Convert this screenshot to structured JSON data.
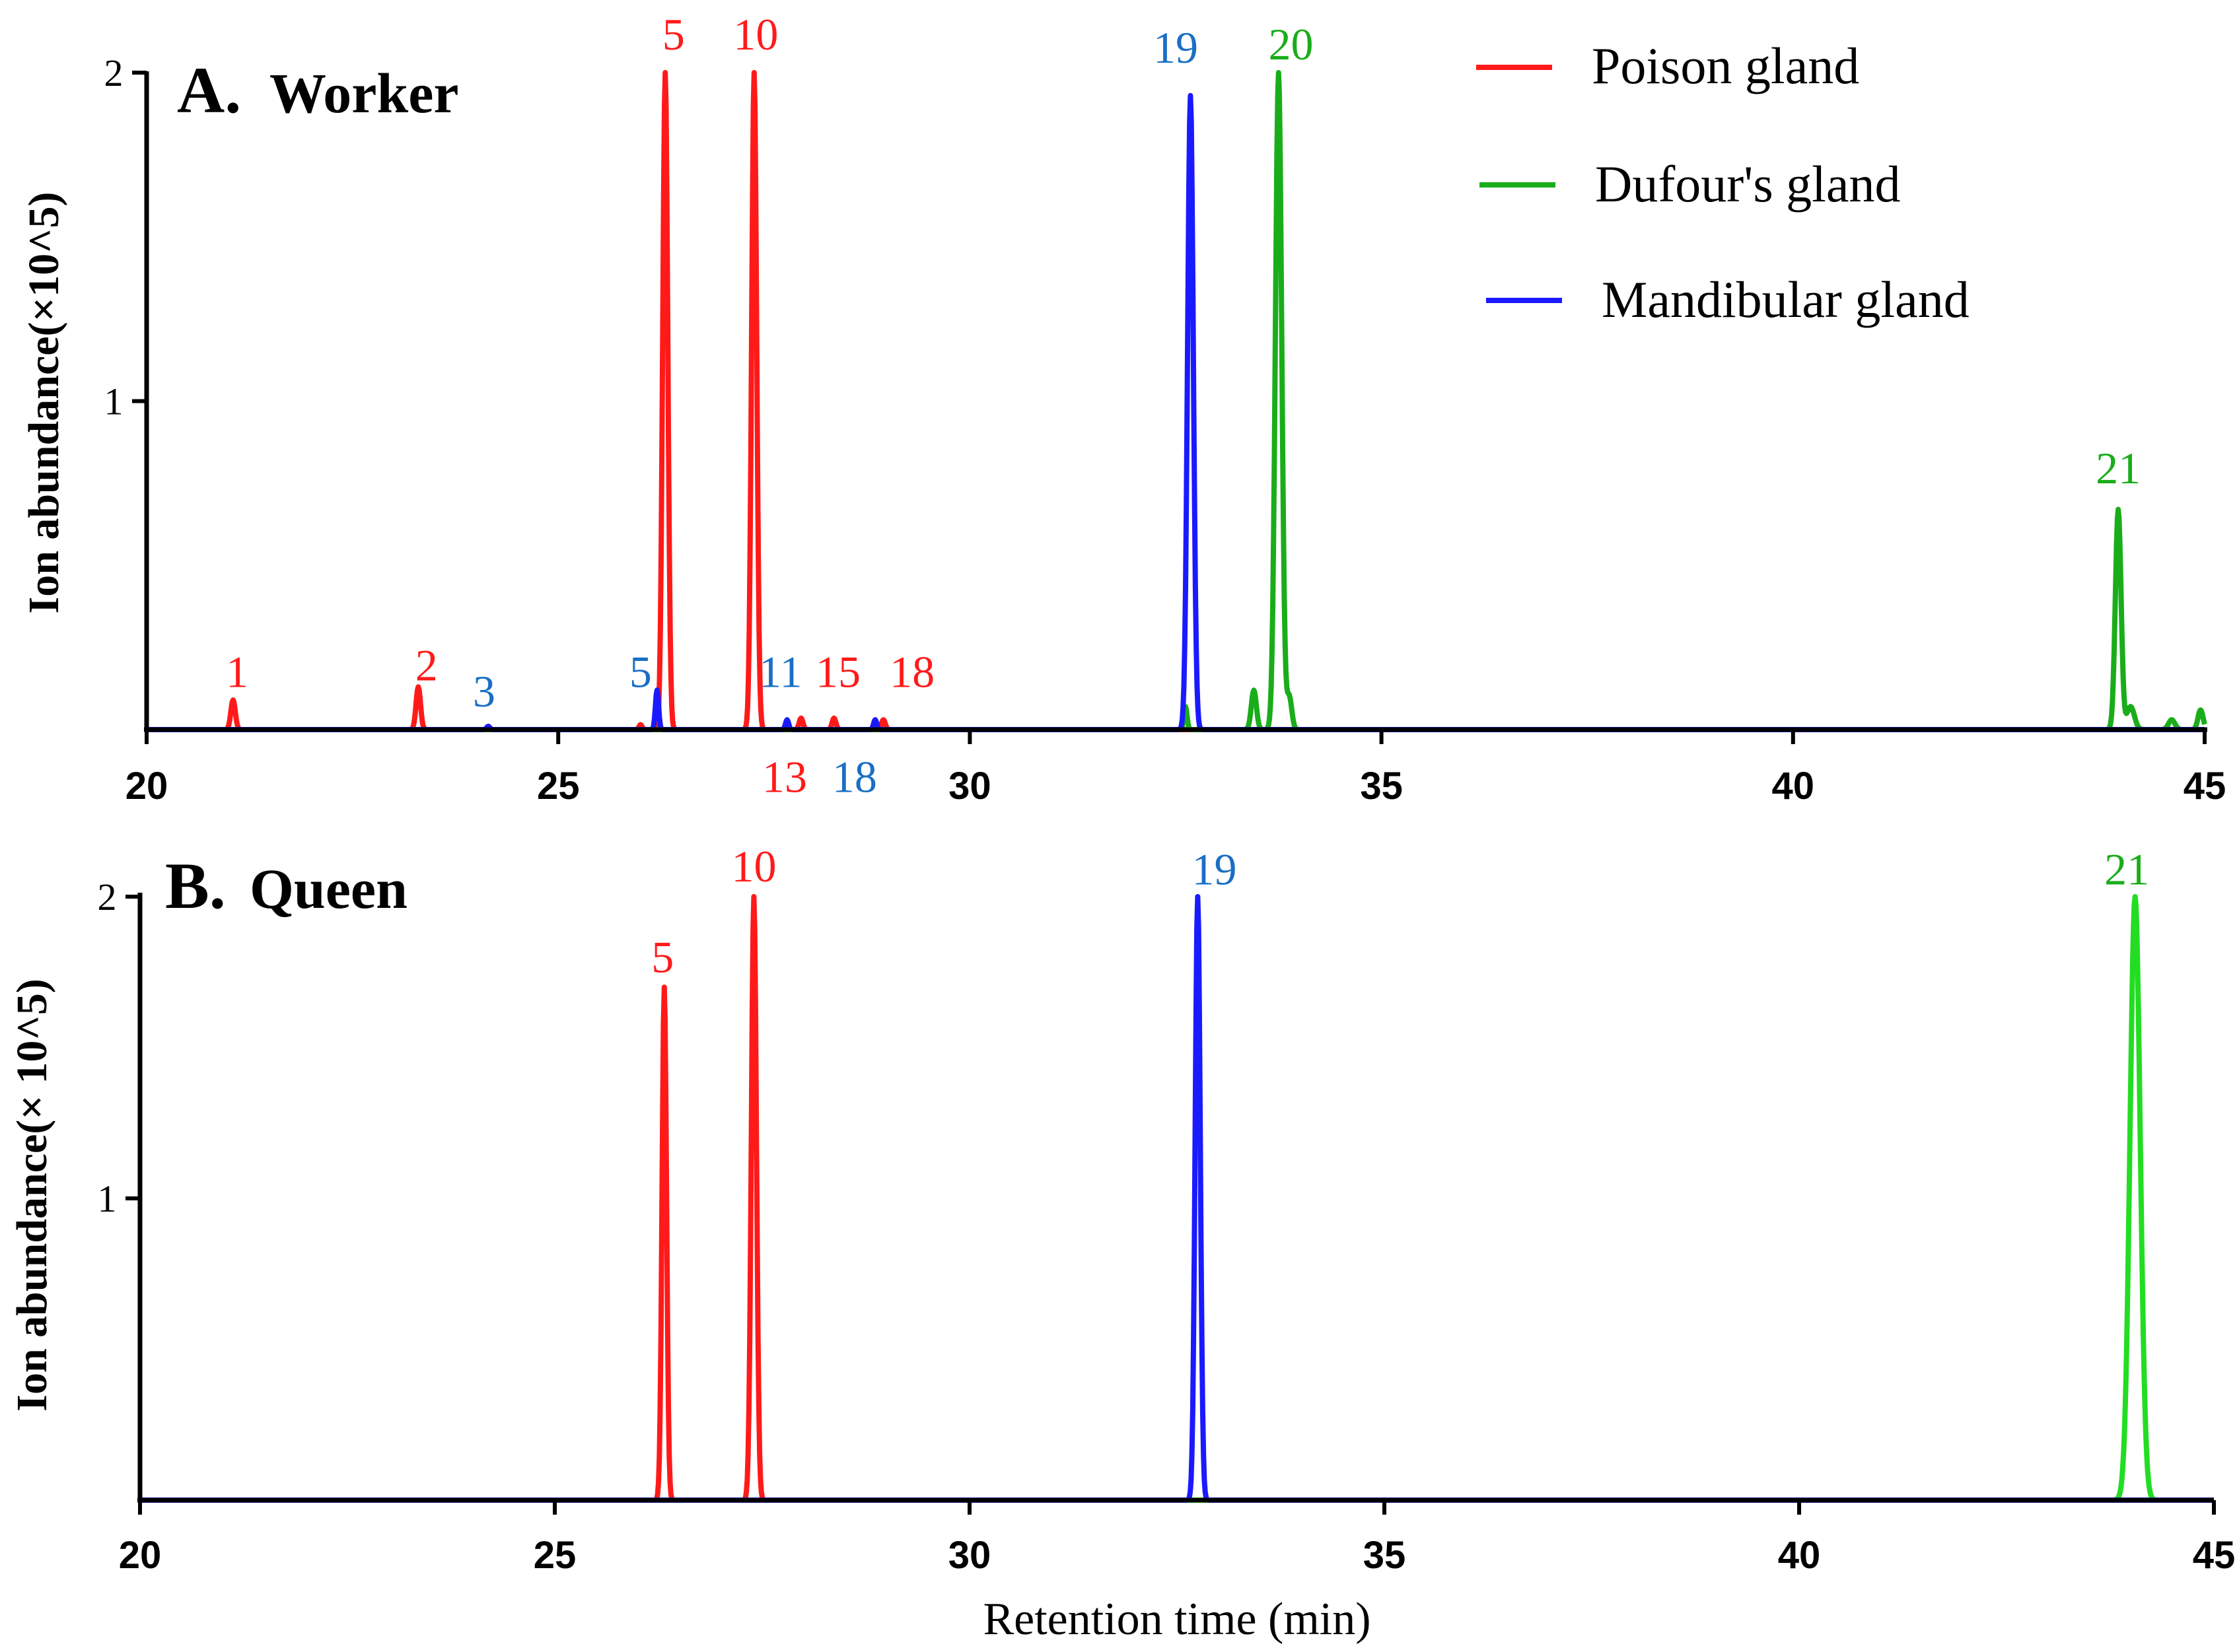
{
  "chart_data": [
    {
      "type": "line",
      "panel": "A",
      "title_letter": "A.",
      "title": "Worker",
      "xlabel": "",
      "ylabel": "Ion abundance(×10^5)",
      "xlim": [
        20,
        45
      ],
      "ylim": [
        0,
        2
      ],
      "xticks": [
        "20",
        "25",
        "30",
        "35",
        "40",
        "45"
      ],
      "yticks": [
        "1",
        "2"
      ],
      "legend": {
        "placement": "top-right",
        "entries": [
          {
            "label": "Poison gland",
            "color": "#ff1a1a"
          },
          {
            "label": "Dufour's gland",
            "color": "#1aad1a"
          },
          {
            "label": "Mandibular gland",
            "color": "#1a1aff"
          }
        ]
      },
      "series": [
        {
          "name": "Poison gland",
          "color": "#ff1a1a",
          "peaks": [
            {
              "x": 21.05,
              "y": 0.09,
              "width": 0.07
            },
            {
              "x": 23.3,
              "y": 0.13,
              "width": 0.07
            },
            {
              "x": 26.0,
              "y": 0.015,
              "width": 0.05
            },
            {
              "x": 26.3,
              "y": 2.0,
              "width": 0.08
            },
            {
              "x": 27.38,
              "y": 2.0,
              "width": 0.08
            },
            {
              "x": 27.95,
              "y": 0.035,
              "width": 0.06
            },
            {
              "x": 28.35,
              "y": 0.035,
              "width": 0.06
            },
            {
              "x": 28.95,
              "y": 0.03,
              "width": 0.06
            }
          ]
        },
        {
          "name": "Mandibular gland",
          "color": "#1a1aff",
          "peaks": [
            {
              "x": 24.15,
              "y": 0.01,
              "width": 0.05
            },
            {
              "x": 26.2,
              "y": 0.12,
              "width": 0.05
            },
            {
              "x": 27.78,
              "y": 0.03,
              "width": 0.05
            },
            {
              "x": 28.85,
              "y": 0.03,
              "width": 0.05
            },
            {
              "x": 32.68,
              "y": 1.93,
              "width": 0.09
            }
          ]
        },
        {
          "name": "Dufour's gland",
          "color": "#1aad1a",
          "peaks": [
            {
              "x": 32.62,
              "y": 0.07,
              "width": 0.05
            },
            {
              "x": 33.45,
              "y": 0.12,
              "width": 0.08
            },
            {
              "x": 33.75,
              "y": 2.0,
              "width": 0.1
            },
            {
              "x": 33.88,
              "y": 0.1,
              "width": 0.08
            },
            {
              "x": 43.95,
              "y": 0.67,
              "width": 0.09
            },
            {
              "x": 44.1,
              "y": 0.07,
              "width": 0.12
            },
            {
              "x": 44.6,
              "y": 0.03,
              "width": 0.1
            },
            {
              "x": 44.95,
              "y": 0.06,
              "width": 0.08
            }
          ]
        }
      ],
      "annotations": [
        {
          "text": "1",
          "x": 21.1,
          "y": 0.13,
          "color": "#ff1a1a"
        },
        {
          "text": "2",
          "x": 23.4,
          "y": 0.15,
          "color": "#ff1a1a"
        },
        {
          "text": "3",
          "x": 24.1,
          "y": 0.07,
          "color": "#1a6fc4"
        },
        {
          "text": "5",
          "x": 26.0,
          "y": 0.13,
          "color": "#1a6fc4"
        },
        {
          "text": "5",
          "x": 26.4,
          "y": 2.07,
          "color": "#ff1a1a"
        },
        {
          "text": "10",
          "x": 27.4,
          "y": 2.07,
          "color": "#ff1a1a"
        },
        {
          "text": "11",
          "x": 27.7,
          "y": 0.13,
          "color": "#1a6fc4"
        },
        {
          "text": "15",
          "x": 28.4,
          "y": 0.13,
          "color": "#ff1a1a"
        },
        {
          "text": "18",
          "x": 29.3,
          "y": 0.13,
          "color": "#ff1a1a"
        },
        {
          "text": "13",
          "x": 27.75,
          "y": -0.19,
          "color": "#ff1a1a"
        },
        {
          "text": "18",
          "x": 28.6,
          "y": -0.19,
          "color": "#1a6fc4"
        },
        {
          "text": "19",
          "x": 32.5,
          "y": 2.03,
          "color": "#1a6fc4"
        },
        {
          "text": "20",
          "x": 33.9,
          "y": 2.04,
          "color": "#1aad1a"
        },
        {
          "text": "21",
          "x": 43.95,
          "y": 0.75,
          "color": "#1aad1a"
        }
      ]
    },
    {
      "type": "line",
      "panel": "B",
      "title_letter": "B.",
      "title": "Queen",
      "xlabel": "Retention time (min)",
      "ylabel": "Ion abundance(× 10^5)",
      "xlim": [
        20,
        45
      ],
      "ylim": [
        0,
        2
      ],
      "xticks": [
        "20",
        "25",
        "30",
        "35",
        "40",
        "45"
      ],
      "yticks": [
        "1",
        "2"
      ],
      "series": [
        {
          "name": "Poison gland",
          "color": "#ff1a1a",
          "peaks": [
            {
              "x": 26.32,
              "y": 1.7,
              "width": 0.07
            },
            {
              "x": 27.4,
              "y": 2.0,
              "width": 0.08
            }
          ]
        },
        {
          "name": "Mandibular gland",
          "color": "#1a1aff",
          "peaks": [
            {
              "x": 32.75,
              "y": 2.0,
              "width": 0.08
            }
          ]
        },
        {
          "name": "Dufour's gland",
          "color": "#22dd22",
          "peaks": [
            {
              "x": 44.05,
              "y": 2.0,
              "width": 0.16
            }
          ]
        }
      ],
      "annotations": [
        {
          "text": "5",
          "x": 26.3,
          "y": 1.75,
          "color": "#ff1a1a"
        },
        {
          "text": "10",
          "x": 27.4,
          "y": 2.05,
          "color": "#ff1a1a"
        },
        {
          "text": "19",
          "x": 32.95,
          "y": 2.04,
          "color": "#1a6fc4"
        },
        {
          "text": "21",
          "x": 43.95,
          "y": 2.04,
          "color": "#1aad1a"
        }
      ]
    }
  ]
}
